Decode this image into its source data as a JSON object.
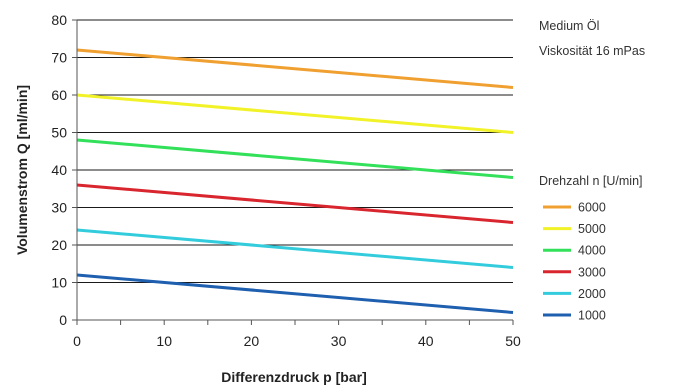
{
  "chart_data": {
    "type": "line",
    "title": "",
    "xlabel": "Differenzdruck p [bar]",
    "ylabel": "Volumenstrom Q [ml/min]",
    "xlim": [
      0,
      50
    ],
    "ylim": [
      0,
      80
    ],
    "xticks": [
      "0",
      "10",
      "20",
      "30",
      "40",
      "50"
    ],
    "yticks": [
      "0",
      "10",
      "20",
      "30",
      "40",
      "50",
      "60",
      "70",
      "80"
    ],
    "grid": "horizontal",
    "notes": [
      "Medium Öl",
      "Viskosität 16 mPas"
    ],
    "legend_title": "Drehzahl n [U/min]",
    "legend_position": "right",
    "series": [
      {
        "name": "6000",
        "color": "#f0a030",
        "x": [
          0,
          50
        ],
        "y": [
          72,
          62
        ]
      },
      {
        "name": "5000",
        "color": "#f2f229",
        "x": [
          0,
          50
        ],
        "y": [
          60,
          50
        ]
      },
      {
        "name": "4000",
        "color": "#33e05a",
        "x": [
          0,
          50
        ],
        "y": [
          48,
          38
        ]
      },
      {
        "name": "3000",
        "color": "#d9262e",
        "x": [
          0,
          50
        ],
        "y": [
          36,
          26
        ]
      },
      {
        "name": "2000",
        "color": "#33ccdd",
        "x": [
          0,
          50
        ],
        "y": [
          24,
          14
        ]
      },
      {
        "name": "1000",
        "color": "#1f5faf",
        "x": [
          0,
          50
        ],
        "y": [
          12,
          2
        ]
      }
    ]
  }
}
